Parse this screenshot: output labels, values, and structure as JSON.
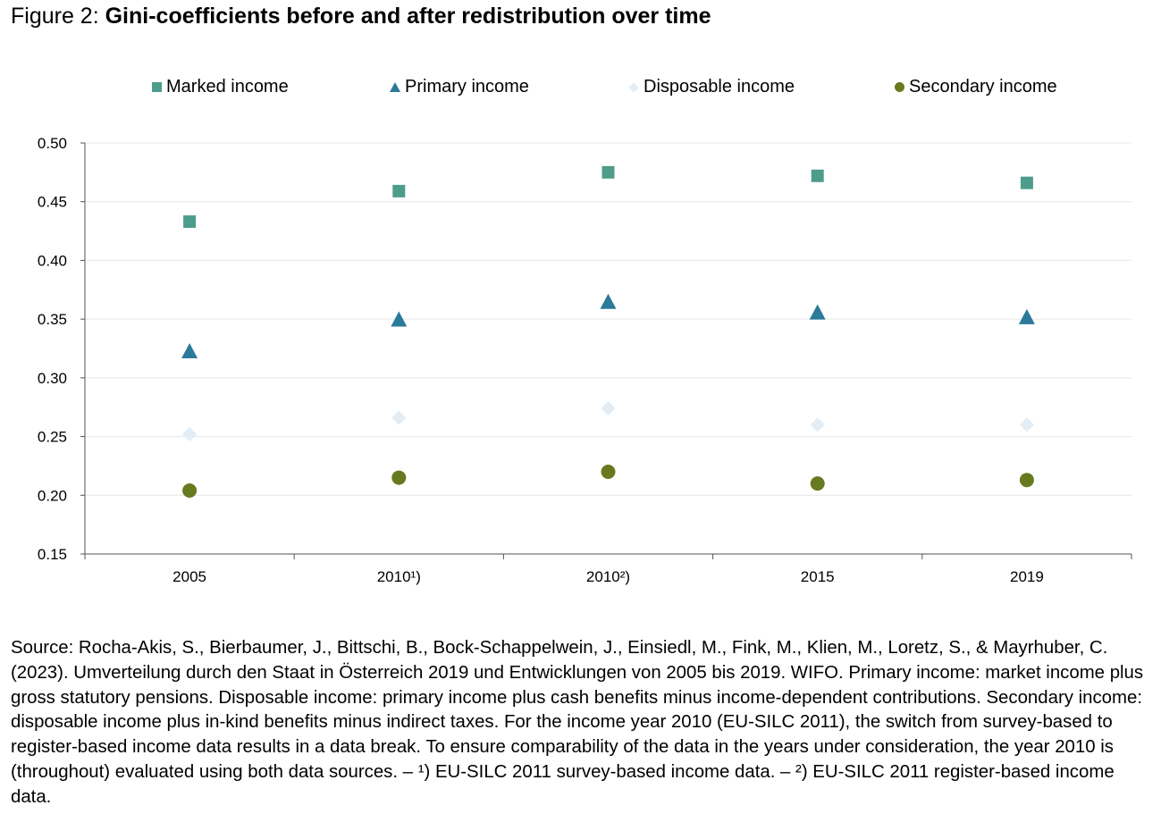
{
  "figure": {
    "title_prefix": "Figure 2: ",
    "title_bold": "Gini-coefficients before and after redistribution over time"
  },
  "legend": {
    "items": [
      {
        "label": "Marked income",
        "marker": "square",
        "color": "#4e9c8b"
      },
      {
        "label": "Primary income",
        "marker": "triangle",
        "color": "#2b7a99"
      },
      {
        "label": "Disposable income",
        "marker": "diamond",
        "color": "#e2edf6"
      },
      {
        "label": "Secondary income",
        "marker": "circle",
        "color": "#677a1f"
      }
    ]
  },
  "chart_data": {
    "type": "scatter",
    "categories": [
      "2005",
      "2010¹)",
      "2010²)",
      "2015",
      "2019"
    ],
    "series": [
      {
        "name": "Marked income",
        "marker": "square",
        "color": "#4e9c8b",
        "values": [
          0.433,
          0.459,
          0.475,
          0.472,
          0.466
        ]
      },
      {
        "name": "Primary income",
        "marker": "triangle",
        "color": "#2b7a99",
        "values": [
          0.322,
          0.349,
          0.364,
          0.355,
          0.351
        ]
      },
      {
        "name": "Disposable income",
        "marker": "diamond",
        "color": "#e2edf6",
        "values": [
          0.252,
          0.266,
          0.274,
          0.26,
          0.26
        ]
      },
      {
        "name": "Secondary income",
        "marker": "circle",
        "color": "#677a1f",
        "values": [
          0.204,
          0.215,
          0.22,
          0.21,
          0.213
        ]
      }
    ],
    "ylim": [
      0.15,
      0.5
    ],
    "yticks": [
      "0.50",
      "0.45",
      "0.40",
      "0.35",
      "0.30",
      "0.25",
      "0.20",
      "0.15"
    ],
    "grid": "horizontal",
    "legend_position": "top"
  },
  "source": {
    "text": "Source: Rocha-Akis, S., Bierbaumer, J., Bittschi, B., Bock-Schappelwein, J., Einsiedl, M., Fink, M., Klien, M., Loretz, S., & Mayrhuber, C. (2023). Umverteilung durch den Staat in Österreich 2019 und Entwicklungen von 2005 bis 2019. WIFO. Primary income: market income plus gross statutory pensions. Disposable income: primary income plus cash benefits minus income-dependent contributions. Secondary income: disposable income plus in-kind benefits minus indirect taxes. For the income year 2010 (EU-SILC 2011), the switch from survey-based to register-based income data results in a data break. To ensure comparability of the data in the years under consideration, the year 2010 is (throughout) evaluated using both data sources. – ¹) EU-SILC 2011 survey-based income data. – ²) EU-SILC 2011 register-based income data."
  }
}
